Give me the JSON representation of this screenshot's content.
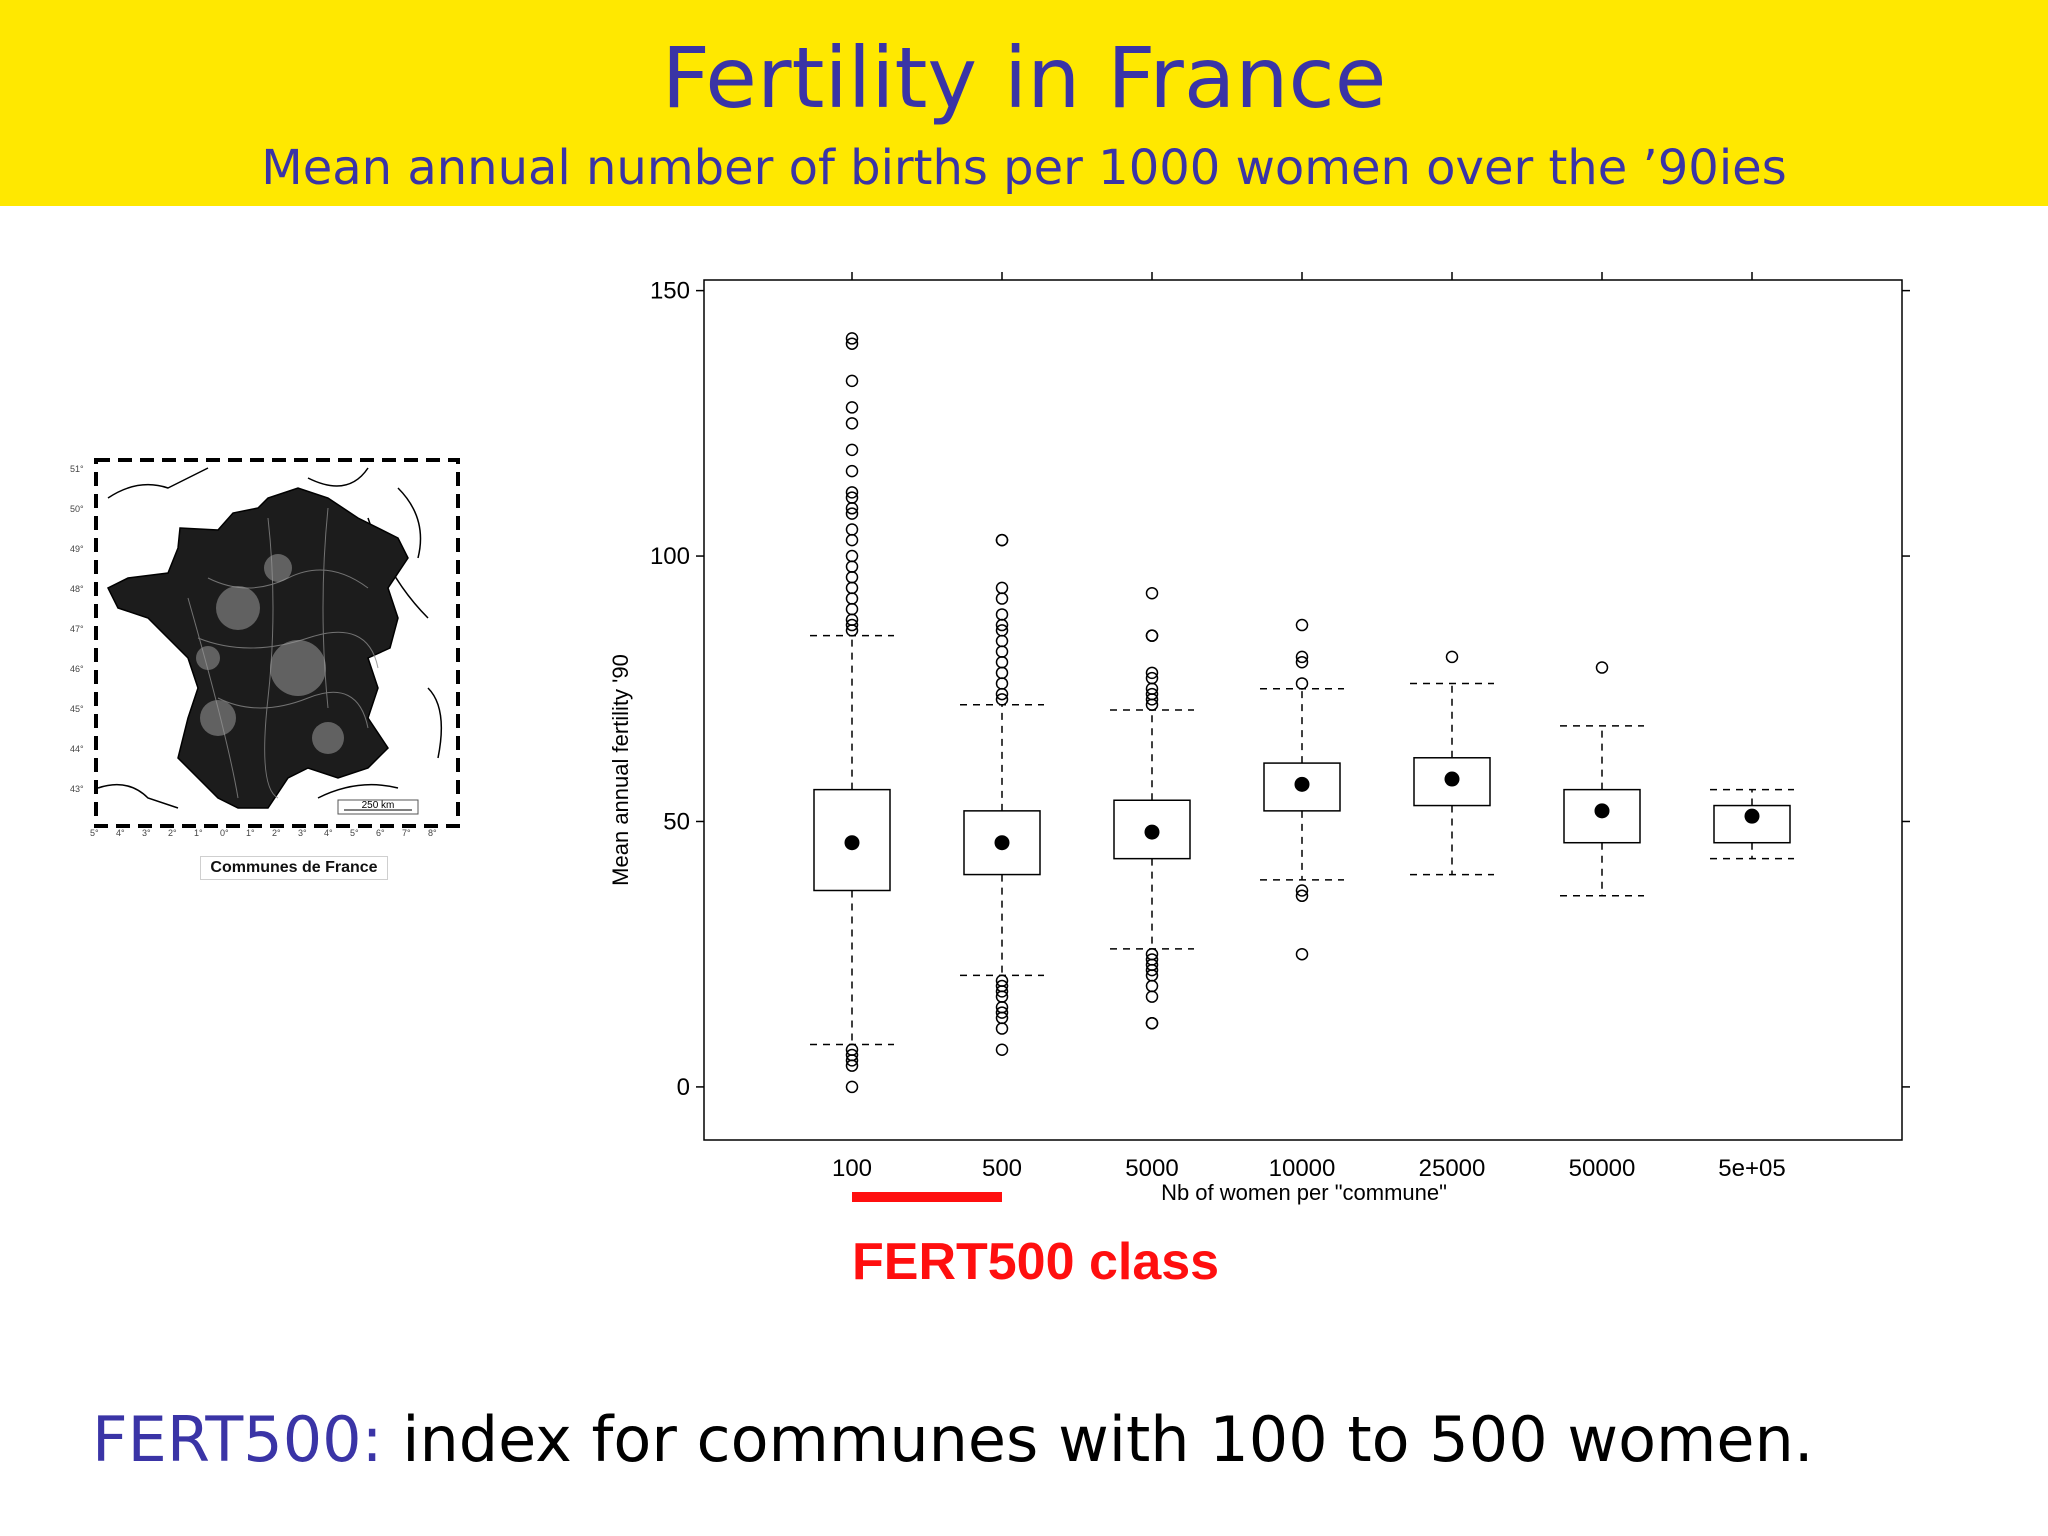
{
  "header": {
    "title": "Fertility in France",
    "subtitle": "Mean annual number of births per 1000 women over the ’90ies",
    "background_color": "#ffe800",
    "text_color": "#3a34a6"
  },
  "map": {
    "caption": "Communes de France",
    "scale_label": "250 km",
    "lat_labels": [
      "51°",
      "50°",
      "49°",
      "48°",
      "47°",
      "46°",
      "45°",
      "44°",
      "43°"
    ],
    "lon_labels": [
      "5°",
      "4°",
      "3°",
      "2°",
      "1°",
      "0°",
      "1°",
      "2°",
      "3°",
      "4°",
      "5°",
      "6°",
      "7°",
      "8°"
    ]
  },
  "chart_data": {
    "type": "box",
    "xlabel": "Nb of women per \"commune\"",
    "ylabel": "Mean annual fertility '90",
    "ylim": [
      -10,
      152
    ],
    "yticks": [
      0,
      50,
      100,
      150
    ],
    "categories": [
      "100",
      "500",
      "5000",
      "10000",
      "25000",
      "50000",
      "5e+05"
    ],
    "boxes": [
      {
        "category": "100",
        "median": 46,
        "q1": 37,
        "q3": 56,
        "whisker_low": 8,
        "whisker_high": 85,
        "outliers": [
          141,
          140,
          133,
          128,
          125,
          120,
          116,
          112,
          111,
          109,
          108,
          105,
          103,
          100,
          98,
          96,
          94,
          92,
          90,
          88,
          87,
          86,
          7,
          6,
          5,
          4,
          0
        ]
      },
      {
        "category": "500",
        "median": 46,
        "q1": 40,
        "q3": 52,
        "whisker_low": 21,
        "whisker_high": 72,
        "outliers": [
          103,
          103,
          94,
          92,
          89,
          87,
          86,
          84,
          82,
          80,
          78,
          76,
          74,
          73,
          20,
          19,
          18,
          17,
          15,
          14,
          13,
          11,
          7
        ]
      },
      {
        "category": "5000",
        "median": 48,
        "q1": 43,
        "q3": 54,
        "whisker_low": 26,
        "whisker_high": 71,
        "outliers": [
          93,
          85,
          85,
          78,
          77,
          75,
          74,
          73,
          72,
          25,
          24,
          23,
          22,
          21,
          19,
          17,
          12,
          12
        ]
      },
      {
        "category": "10000",
        "median": 57,
        "q1": 52,
        "q3": 61,
        "whisker_low": 39,
        "whisker_high": 75,
        "outliers": [
          87,
          81,
          80,
          76,
          37,
          36,
          25
        ]
      },
      {
        "category": "25000",
        "median": 58,
        "q1": 53,
        "q3": 62,
        "whisker_low": 40,
        "whisker_high": 76,
        "outliers": [
          81
        ]
      },
      {
        "category": "50000",
        "median": 52,
        "q1": 46,
        "q3": 56,
        "whisker_low": 36,
        "whisker_high": 68,
        "outliers": [
          79
        ]
      },
      {
        "category": "5e+05",
        "median": 51,
        "q1": 46,
        "q3": 53,
        "whisker_low": 43,
        "whisker_high": 56,
        "outliers": []
      }
    ],
    "highlight": {
      "label": "FERT500 class",
      "from_category": "100",
      "to_category": "500",
      "color": "#ff0f0f"
    }
  },
  "footer": {
    "key": "FERT500:",
    "text": " index for communes with 100 to 500 women."
  }
}
